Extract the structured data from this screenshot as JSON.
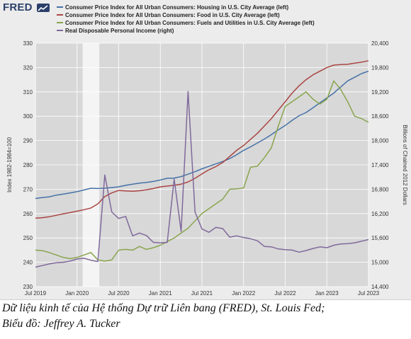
{
  "logo": {
    "text": "FRED"
  },
  "caption": {
    "line1": "Dữ liệu kinh tế của Hệ thống Dự trữ Liên bang (FRED), St. Louis Fed;",
    "line2": "Biểu đồ: Jeffrey A. Tucker"
  },
  "chart_data": {
    "type": "line",
    "xlabel": "",
    "ylabel_left": "Index 1982-1984=100",
    "ylabel_right": "Billions of Chained 2012 Dollars",
    "x_ticks": [
      "Jul 2019",
      "Jan 2020",
      "Jul 2020",
      "Jan 2021",
      "Jul 2021",
      "Jan 2022",
      "Jul 2022",
      "Jan 2023",
      "Jul 2023"
    ],
    "ylim_left": [
      230,
      330
    ],
    "yticks_left": [
      "230",
      "240",
      "250",
      "260",
      "270",
      "280",
      "290",
      "300",
      "310",
      "320",
      "330"
    ],
    "ylim_right": [
      14400,
      20400
    ],
    "yticks_right": [
      "14,400",
      "15,000",
      "15,600",
      "16,200",
      "16,800",
      "17,400",
      "18,000",
      "18,600",
      "19,200",
      "19,800",
      "20,400"
    ],
    "recession_shading": [
      "2020-02",
      "2020-04"
    ],
    "grid": true,
    "legend_position": "top",
    "x": [
      "2019-07",
      "2019-08",
      "2019-09",
      "2019-10",
      "2019-11",
      "2019-12",
      "2020-01",
      "2020-02",
      "2020-03",
      "2020-04",
      "2020-05",
      "2020-06",
      "2020-07",
      "2020-08",
      "2020-09",
      "2020-10",
      "2020-11",
      "2020-12",
      "2021-01",
      "2021-02",
      "2021-03",
      "2021-04",
      "2021-05",
      "2021-06",
      "2021-07",
      "2021-08",
      "2021-09",
      "2021-10",
      "2021-11",
      "2021-12",
      "2022-01",
      "2022-02",
      "2022-03",
      "2022-04",
      "2022-05",
      "2022-06",
      "2022-07",
      "2022-08",
      "2022-09",
      "2022-10",
      "2022-11",
      "2022-12",
      "2023-01",
      "2023-02",
      "2023-03",
      "2023-04",
      "2023-05",
      "2023-06",
      "2023-07"
    ],
    "series": [
      {
        "name": "Consumer Price Index for All Urban Consumers: Housing in U.S. City Average (left)",
        "axis": "left",
        "color": "#4572a7",
        "values": [
          266.2,
          266.6,
          266.9,
          267.6,
          268.0,
          268.5,
          269.0,
          269.7,
          270.4,
          270.3,
          270.4,
          270.7,
          271.0,
          271.6,
          272.1,
          272.5,
          272.8,
          273.2,
          273.8,
          274.5,
          274.6,
          275.2,
          276.2,
          277.2,
          278.4,
          279.4,
          280.4,
          281.4,
          282.6,
          284.2,
          286.0,
          287.4,
          289.0,
          290.6,
          292.4,
          294.4,
          296.2,
          298.3,
          300.2,
          301.5,
          303.5,
          305.5,
          307.5,
          309.5,
          312.0,
          314.5,
          316.0,
          317.5,
          318.5
        ]
      },
      {
        "name": "Consumer Price Index for All Urban Consumers: Food in U.S. City Average (left)",
        "axis": "left",
        "color": "#aa4643",
        "values": [
          258.1,
          258.3,
          258.7,
          259.3,
          259.9,
          260.4,
          261.0,
          261.6,
          262.3,
          264.0,
          267.0,
          268.5,
          269.5,
          269.3,
          269.2,
          269.4,
          269.8,
          270.3,
          271.0,
          271.3,
          271.6,
          272.1,
          273.0,
          274.5,
          276.3,
          278.0,
          279.3,
          281.0,
          283.5,
          286.0,
          288.0,
          290.5,
          293.0,
          296.0,
          299.0,
          302.5,
          306.0,
          309.5,
          312.5,
          315.0,
          317.0,
          318.5,
          320.0,
          321.0,
          321.2,
          321.3,
          321.8,
          322.2,
          322.8
        ]
      },
      {
        "name": "Consumer Price Index for All Urban Consumers: Fuels and Utilities in U.S. City Average (left)",
        "axis": "left",
        "color": "#89a54e",
        "values": [
          245.0,
          244.8,
          244.0,
          243.0,
          242.0,
          241.5,
          242.0,
          243.0,
          244.0,
          241.0,
          240.5,
          241.0,
          245.0,
          245.3,
          245.0,
          246.5,
          245.3,
          246.0,
          247.0,
          248.5,
          250.0,
          252.0,
          254.0,
          257.0,
          260.0,
          262.0,
          264.0,
          266.0,
          270.0,
          270.2,
          270.5,
          279.0,
          279.5,
          283.0,
          287.0,
          296.0,
          304.0,
          306.0,
          308.0,
          310.0,
          307.0,
          305.0,
          307.0,
          314.5,
          311.0,
          306.0,
          300.0,
          299.0,
          297.5
        ]
      },
      {
        "name": "Real Disposable Personal Income (right)",
        "axis": "right",
        "color": "#80699b",
        "values": [
          14880,
          14920,
          14960,
          14990,
          15000,
          15030,
          15080,
          15100,
          15050,
          15020,
          17150,
          16240,
          16080,
          16130,
          15650,
          15720,
          15660,
          15490,
          15480,
          15490,
          17050,
          15760,
          19210,
          16240,
          15820,
          15740,
          15860,
          15830,
          15620,
          15650,
          15610,
          15580,
          15530,
          15390,
          15380,
          15330,
          15310,
          15300,
          15250,
          15290,
          15340,
          15380,
          15360,
          15420,
          15450,
          15460,
          15480,
          15520,
          15560
        ]
      }
    ]
  }
}
